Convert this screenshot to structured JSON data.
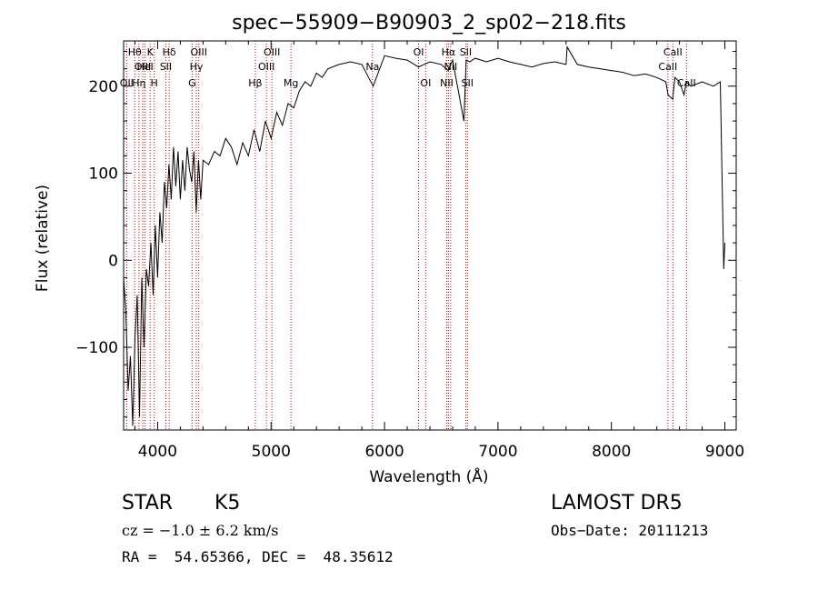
{
  "chart_data": {
    "type": "line",
    "title": "spec−55909−B90903_2_sp02−218.fits",
    "xlabel": "Wavelength (Å)",
    "ylabel": "Flux (relative)",
    "xlim": [
      3700,
      9100
    ],
    "ylim": [
      -195,
      252
    ],
    "x_ticks": [
      4000,
      5000,
      6000,
      7000,
      8000,
      9000
    ],
    "y_ticks": [
      -100,
      0,
      100,
      200
    ],
    "y_tick_labels": [
      "−100",
      "0",
      "100",
      "200"
    ],
    "grid": false,
    "series": [
      {
        "x": [
          3700,
          3720,
          3740,
          3760,
          3780,
          3800,
          3820,
          3840,
          3860,
          3880,
          3900,
          3920,
          3940,
          3960,
          3980,
          4000,
          4020,
          4040,
          4060,
          4080,
          4100,
          4120,
          4140,
          4160,
          4180,
          4200,
          4220,
          4240,
          4260,
          4280,
          4300,
          4320,
          4340,
          4360,
          4380,
          4400,
          4450,
          4500,
          4550,
          4600,
          4650,
          4700,
          4750,
          4800,
          4850,
          4900,
          4950,
          5000,
          5050,
          5100,
          5150,
          5200,
          5250,
          5300,
          5350,
          5400,
          5450,
          5500,
          5600,
          5700,
          5800,
          5900,
          6000,
          6100,
          6200,
          6300,
          6400,
          6500,
          6560,
          6600,
          6700,
          6720,
          6750,
          6800,
          6900,
          7000,
          7100,
          7200,
          7300,
          7400,
          7500,
          7600,
          7610,
          7700,
          7800,
          7900,
          8000,
          8100,
          8200,
          8300,
          8400,
          8480,
          8500,
          8540,
          8560,
          8600,
          8640,
          8660,
          8700,
          8800,
          8900,
          8960,
          8990,
          9000
        ],
        "y": [
          -20,
          -60,
          -150,
          -110,
          -190,
          -90,
          -40,
          -180,
          -20,
          -100,
          -10,
          -30,
          20,
          -40,
          40,
          -20,
          55,
          20,
          90,
          60,
          110,
          70,
          130,
          85,
          125,
          70,
          115,
          80,
          130,
          105,
          90,
          125,
          55,
          115,
          70,
          115,
          110,
          125,
          120,
          140,
          130,
          110,
          135,
          120,
          150,
          125,
          160,
          140,
          170,
          155,
          180,
          175,
          195,
          205,
          200,
          215,
          210,
          220,
          225,
          228,
          225,
          200,
          235,
          232,
          230,
          222,
          228,
          225,
          218,
          230,
          160,
          230,
          228,
          232,
          228,
          232,
          228,
          225,
          222,
          226,
          228,
          225,
          245,
          225,
          222,
          220,
          218,
          216,
          212,
          214,
          210,
          205,
          190,
          185,
          210,
          205,
          190,
          205,
          200,
          205,
          200,
          205,
          -10,
          20
        ]
      }
    ]
  },
  "lines": [
    {
      "wave": 3727,
      "label": "OII",
      "row": 3
    },
    {
      "wave": 3798,
      "label": "Hθ",
      "row": 1
    },
    {
      "wave": 3835,
      "label": "Hη",
      "row": 3
    },
    {
      "wave": 3869,
      "label": "OIII",
      "row": 2
    },
    {
      "wave": 3889,
      "label": "HeI",
      "row": 2
    },
    {
      "wave": 3934,
      "label": "K",
      "row": 1
    },
    {
      "wave": 3970,
      "label": "H",
      "row": 3
    },
    {
      "wave": 4072,
      "label": "SII",
      "row": 2
    },
    {
      "wave": 4102,
      "label": "Hδ",
      "row": 1
    },
    {
      "wave": 4304,
      "label": "G",
      "row": 3
    },
    {
      "wave": 4341,
      "label": "Hγ",
      "row": 2
    },
    {
      "wave": 4363,
      "label": "OIII",
      "row": 1
    },
    {
      "wave": 4861,
      "label": "Hβ",
      "row": 3
    },
    {
      "wave": 4959,
      "label": "OIII",
      "row": 2
    },
    {
      "wave": 5007,
      "label": "OIII",
      "row": 1
    },
    {
      "wave": 5175,
      "label": "Mg",
      "row": 3
    },
    {
      "wave": 5894,
      "label": "Na",
      "row": 2
    },
    {
      "wave": 6300,
      "label": "OI",
      "row": 1
    },
    {
      "wave": 6363,
      "label": "OI",
      "row": 3
    },
    {
      "wave": 6548,
      "label": "NII",
      "row": 3
    },
    {
      "wave": 6563,
      "label": "Hα",
      "row": 1
    },
    {
      "wave": 6583,
      "label": "NII",
      "row": 2
    },
    {
      "wave": 6716,
      "label": "SII",
      "row": 1
    },
    {
      "wave": 6731,
      "label": "SII",
      "row": 3
    },
    {
      "wave": 8498,
      "label": "CaII",
      "row": 2
    },
    {
      "wave": 8542,
      "label": "CaII",
      "row": 1
    },
    {
      "wave": 8662,
      "label": "CaII",
      "row": 3
    }
  ],
  "info": {
    "class": "STAR",
    "subclass": "K5",
    "cz": "cz = −1.0 ± 6.2 km/s",
    "radec": "RA =  54.65366, DEC =  48.35612",
    "survey": "LAMOST DR5",
    "obs_date": "Obs−Date: 20111213"
  },
  "colors": {
    "line": "#000000",
    "marker": "#cc0000",
    "background": "#ffffff"
  }
}
